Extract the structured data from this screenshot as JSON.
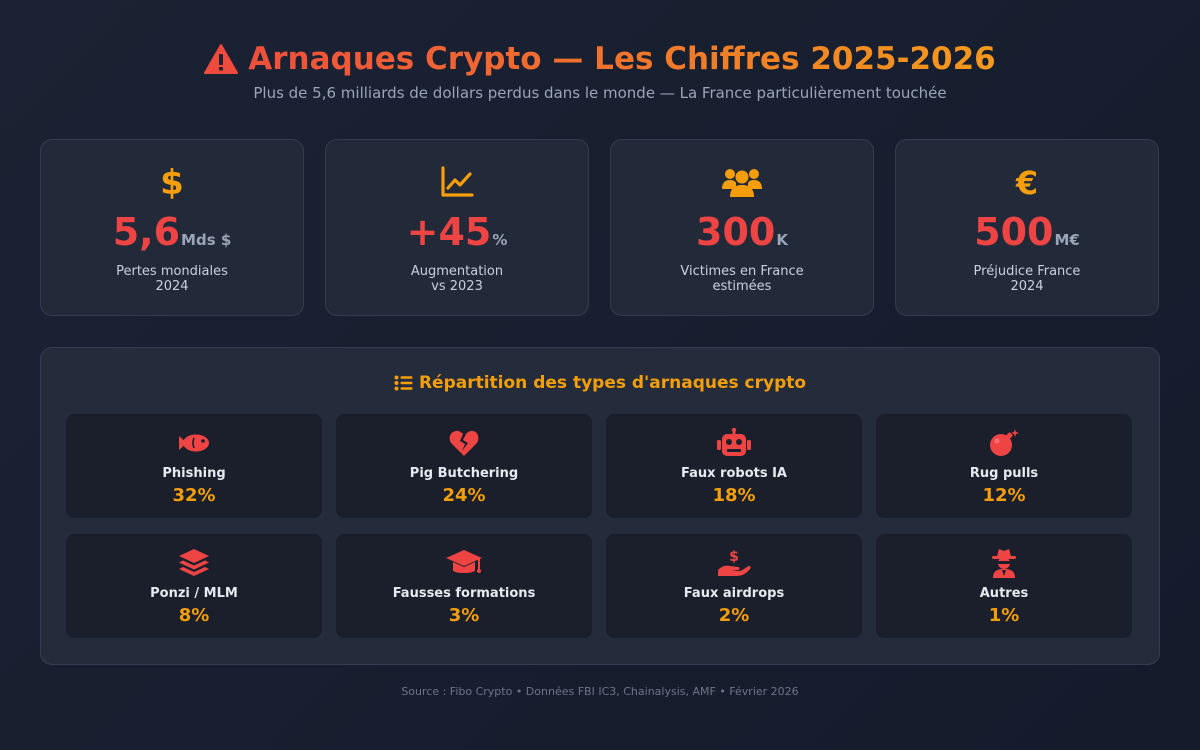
{
  "header": {
    "title": "Arnaques Crypto — Les Chiffres 2025-2026",
    "subtitle": "Plus de 5,6 milliards de dollars perdus dans le monde — La France particulièrement touchée"
  },
  "colors": {
    "accent_red": "#ef4444",
    "accent_orange": "#f59e0b",
    "background": "#1b2233"
  },
  "stats": [
    {
      "icon": "dollar-icon",
      "value": "5,6",
      "unit": "Mds $",
      "label_line1": "Pertes mondiales",
      "label_line2": "2024"
    },
    {
      "icon": "chart-line-icon",
      "value": "+45",
      "unit": "%",
      "label_line1": "Augmentation",
      "label_line2": "vs 2023"
    },
    {
      "icon": "users-icon",
      "value": "300",
      "unit": "K",
      "label_line1": "Victimes en France",
      "label_line2": "estimées"
    },
    {
      "icon": "euro-icon",
      "value": "500",
      "unit": "M€",
      "label_line1": "Préjudice France",
      "label_line2": "2024"
    }
  ],
  "breakdown": {
    "title": "Répartition des types d'arnaques crypto",
    "items": [
      {
        "icon": "fish-icon",
        "name": "Phishing",
        "percent": "32%"
      },
      {
        "icon": "heart-crack-icon",
        "name": "Pig Butchering",
        "percent": "24%"
      },
      {
        "icon": "robot-icon",
        "name": "Faux robots IA",
        "percent": "18%"
      },
      {
        "icon": "bomb-icon",
        "name": "Rug pulls",
        "percent": "12%"
      },
      {
        "icon": "layers-icon",
        "name": "Ponzi / MLM",
        "percent": "8%"
      },
      {
        "icon": "graduation-cap-icon",
        "name": "Fausses formations",
        "percent": "3%"
      },
      {
        "icon": "hand-dollar-icon",
        "name": "Faux airdrops",
        "percent": "2%"
      },
      {
        "icon": "user-secret-icon",
        "name": "Autres",
        "percent": "1%"
      }
    ]
  },
  "footer": "Source : Fibo Crypto • Données FBI IC3, Chainalysis, AMF • Février 2026"
}
